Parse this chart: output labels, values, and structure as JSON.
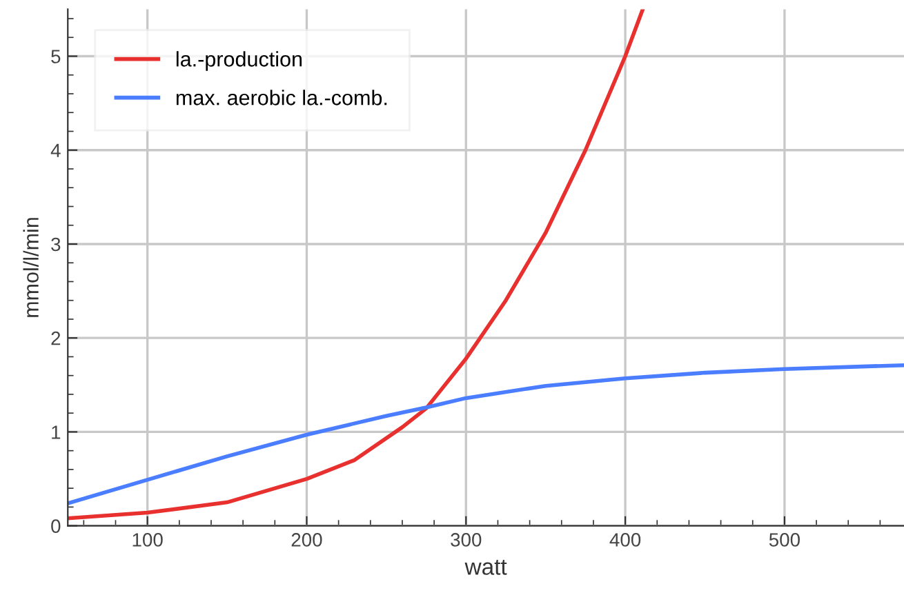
{
  "chart_data": {
    "type": "line",
    "xlabel": "watt",
    "ylabel": "mmol/l/min",
    "xlim": [
      50,
      575
    ],
    "ylim": [
      0,
      5.5
    ],
    "xticks": [
      100,
      200,
      300,
      400,
      500
    ],
    "yticks": [
      0,
      1,
      2,
      3,
      4,
      5
    ],
    "grid": true,
    "legend": "top left",
    "marker": "none",
    "line_style": "solid",
    "series": [
      {
        "name": "la.-production",
        "color": "#e8302f",
        "x": [
          50,
          100,
          150,
          200,
          230,
          260,
          275,
          300,
          325,
          350,
          375,
          400,
          411
        ],
        "values": [
          0.08,
          0.14,
          0.25,
          0.5,
          0.7,
          1.05,
          1.25,
          1.78,
          2.4,
          3.12,
          4.0,
          5.0,
          5.5
        ]
      },
      {
        "name": "max. aerobic la.-comb.",
        "color": "#4a7dff",
        "x": [
          50,
          100,
          150,
          200,
          250,
          275,
          300,
          350,
          400,
          450,
          500,
          575
        ],
        "values": [
          0.24,
          0.49,
          0.74,
          0.97,
          1.17,
          1.26,
          1.36,
          1.49,
          1.57,
          1.63,
          1.67,
          1.71
        ]
      }
    ]
  }
}
